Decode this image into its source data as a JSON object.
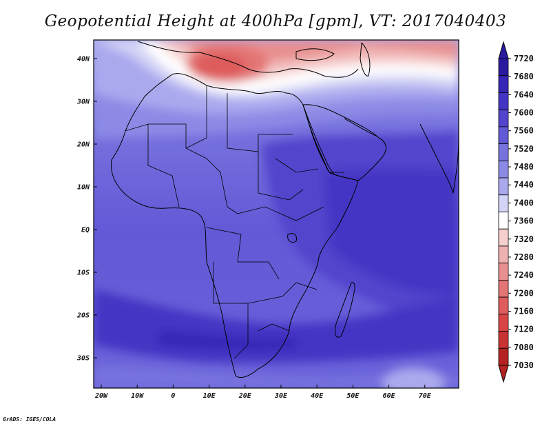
{
  "title": "Geopotential Height at 400hPa [gpm], VT: 2017040403",
  "credit": "GrADS: IGES/COLA",
  "lon_labels": [
    "20W",
    "10W",
    "0",
    "10E",
    "20E",
    "30E",
    "40E",
    "50E",
    "60E",
    "70E"
  ],
  "lat_labels": [
    "40N",
    "30N",
    "20N",
    "10N",
    "EQ",
    "10S",
    "20S",
    "30S"
  ],
  "colorbar": {
    "labels": [
      "7720",
      "7680",
      "7640",
      "7600",
      "7560",
      "7520",
      "7480",
      "7440",
      "7400",
      "7360",
      "7320",
      "7280",
      "7240",
      "7200",
      "7160",
      "7120",
      "7080",
      "7030"
    ],
    "colors": [
      "#2a1aa0",
      "#3526b5",
      "#4434c4",
      "#5244cc",
      "#6259d6",
      "#7772de",
      "#8d8ae6",
      "#aaa9ee",
      "#d4d4f6",
      "#ffffff",
      "#f6cfcf",
      "#efb0b0",
      "#e88f8f",
      "#e37575",
      "#de5c5c",
      "#d94444",
      "#c93232",
      "#b52222"
    ]
  },
  "chart_data": {
    "type": "heatmap",
    "variable": "Geopotential Height at 400hPa [gpm]",
    "valid_time": "2017040403",
    "lon_range": [
      -23,
      80
    ],
    "lat_range": [
      -36,
      45
    ],
    "levels": [
      7030,
      7080,
      7120,
      7160,
      7200,
      7240,
      7280,
      7320,
      7360,
      7400,
      7440,
      7480,
      7520,
      7560,
      7600,
      7640,
      7680,
      7720
    ]
  }
}
